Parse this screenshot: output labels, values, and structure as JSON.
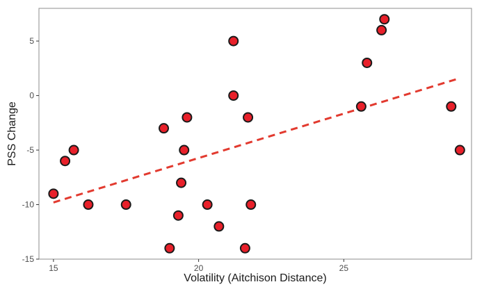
{
  "chart_data": {
    "type": "scatter",
    "xlabel": "Volatility (Aitchison Distance)",
    "ylabel": "PSS Change",
    "xlim": [
      14.5,
      29.4
    ],
    "ylim": [
      -15,
      8
    ],
    "x_ticks": [
      15,
      20,
      25
    ],
    "y_ticks": [
      -15,
      -10,
      -5,
      0,
      5
    ],
    "grid": false,
    "legend": "none",
    "points": [
      {
        "x": 15.0,
        "y": -9
      },
      {
        "x": 15.4,
        "y": -6
      },
      {
        "x": 15.7,
        "y": -5
      },
      {
        "x": 16.2,
        "y": -10
      },
      {
        "x": 17.5,
        "y": -10
      },
      {
        "x": 18.8,
        "y": -3
      },
      {
        "x": 19.0,
        "y": -14
      },
      {
        "x": 19.3,
        "y": -11
      },
      {
        "x": 19.4,
        "y": -8
      },
      {
        "x": 19.5,
        "y": -5
      },
      {
        "x": 19.6,
        "y": -2
      },
      {
        "x": 20.3,
        "y": -10
      },
      {
        "x": 20.7,
        "y": -12
      },
      {
        "x": 21.2,
        "y": 0
      },
      {
        "x": 21.2,
        "y": 5
      },
      {
        "x": 21.6,
        "y": -14
      },
      {
        "x": 21.7,
        "y": -2
      },
      {
        "x": 21.8,
        "y": -10
      },
      {
        "x": 25.6,
        "y": -1
      },
      {
        "x": 25.8,
        "y": 3
      },
      {
        "x": 26.3,
        "y": 6
      },
      {
        "x": 26.4,
        "y": 7
      },
      {
        "x": 28.7,
        "y": -1
      },
      {
        "x": 29.0,
        "y": -5
      }
    ],
    "trend_line": {
      "x": [
        15.0,
        29.0
      ],
      "y": [
        -9.8,
        1.6
      ]
    },
    "colors": {
      "point_fill": "#e8202a",
      "point_stroke": "#1a1a1a",
      "trend": "#e23a2f",
      "frame": "#8c8c8c"
    }
  }
}
